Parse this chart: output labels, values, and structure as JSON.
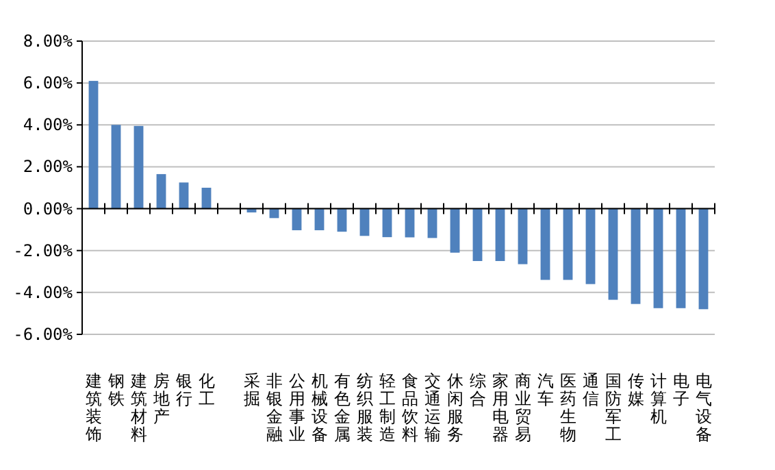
{
  "chart_data": {
    "type": "bar",
    "categories": [
      "建筑装饰",
      "钢铁",
      "建筑材料",
      "房地产",
      "银行",
      "化工",
      null,
      "采掘",
      "非银金融",
      "公用事业",
      "机械设备",
      "有色金属",
      "纺织服装",
      "轻工制造",
      "食品饮料",
      "交通运输",
      "休闲服务",
      "综合",
      "家用电器",
      "商业贸易",
      "汽车",
      "医药生物",
      "通信",
      "国防军工",
      "传媒",
      "计算机",
      "电子",
      "电气设备"
    ],
    "values": [
      6.1,
      4.0,
      3.95,
      1.65,
      1.25,
      1.0,
      0,
      -0.18,
      -0.45,
      -1.03,
      -1.03,
      -1.1,
      -1.3,
      -1.36,
      -1.37,
      -1.4,
      -2.1,
      -2.5,
      -2.5,
      -2.65,
      -3.4,
      -3.4,
      -3.6,
      -4.35,
      -4.55,
      -4.75,
      -4.75,
      -4.8
    ],
    "color": "#4f81bd",
    "ylim": [
      -6,
      8
    ],
    "yticks": [
      {
        "value": -6,
        "label": "-6.00%"
      },
      {
        "value": -4,
        "label": "-4.00%"
      },
      {
        "value": -2,
        "label": "-2.00%"
      },
      {
        "value": 0,
        "label": "0.00%"
      },
      {
        "value": 2,
        "label": "2.00%"
      },
      {
        "value": 4,
        "label": "4.00%"
      },
      {
        "value": 6,
        "label": "6.00%"
      },
      {
        "value": 8,
        "label": "8.00%"
      }
    ],
    "grid": "y"
  }
}
